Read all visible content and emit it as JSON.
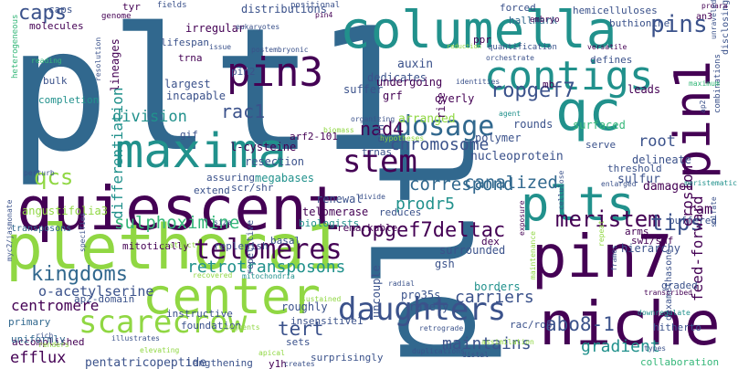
{
  "palette": {
    "background": "#ffffff",
    "dark_purple": "#440154",
    "indigo": "#3b528b",
    "blue": "#31688e",
    "teal": "#21918c",
    "green": "#35b779",
    "lime": "#90d743",
    "yellow": "#fde725"
  },
  "words": [
    "plt1",
    "plt",
    "quiescent",
    "plethora1",
    "columella",
    "qc",
    "maxima",
    "niche",
    "center",
    "pin7",
    "contigs",
    "pin1",
    "plts",
    "daughters",
    "pin3",
    "telomeres",
    "scarecrow",
    "stem",
    "dosage",
    "caps",
    "pins",
    "meristem",
    "tips",
    "ropgef7deltac",
    "kingdoms",
    "ropgef7",
    "nad4",
    "chromosome",
    "sulphoximine",
    "correspond",
    "prodr5",
    "retrotransposons",
    "tert",
    "abo8-1",
    "rac1",
    "qcs",
    "division",
    "differentiation",
    "canalized",
    "efflux",
    "carriers",
    "gradient",
    "maintains",
    "centromere",
    "feed-forward",
    "root",
    "erosion",
    "o-acetylserine",
    "pentatricopeptide",
    "ap2-domain",
    "mitotically",
    "replenish",
    "transposons",
    "angustifolia3",
    "l-cysteine",
    "resection",
    "megabases",
    "telomerase",
    "renewal",
    "nucleoprotein",
    "polymer",
    "rounds",
    "surfaced",
    "hemicelluloses",
    "buthionine",
    "lifespan",
    "irregular",
    "distributions",
    "largest",
    "incapable",
    "lineages",
    "molecules",
    "bulk",
    "completion",
    "forced",
    "hallmark",
    "dedicates",
    "auxin",
    "undergoing",
    "suffer",
    "overly",
    "grf",
    "arranged",
    "rise",
    "mb",
    "leads",
    "delineate",
    "serve",
    "sulfur",
    "damaged",
    "ram",
    "buffered",
    "hierarchy",
    "surrounded",
    "gsh",
    "dex",
    "borders",
    "pro35s",
    "rarely",
    "uncouple",
    "roughly",
    "sets",
    "insensitive1",
    "instructive",
    "foundation",
    "lengthening",
    "surprisingly",
    "accomplished",
    "uniformly",
    "primary",
    "biologists",
    "remarkable",
    "reduces",
    "threshold",
    "arms",
    "graded",
    "hitherto",
    "rac/rop",
    "swi/snf",
    "dexamethasone",
    "collaboration",
    "y1h",
    "basal",
    "scr/shr",
    "trnas",
    "arf2-101",
    "grn",
    "gif",
    "extend",
    "assuring",
    "pin2",
    "trna",
    "caps",
    "fields",
    "positional",
    "genome",
    "tyr",
    "eukaryotes",
    "postembryonic",
    "pin4",
    "embryo",
    "ppr",
    "quantification",
    "defines",
    "disclosing",
    "versatile",
    "an3",
    "pro",
    "ara",
    "orchestrate",
    "identities",
    "reduction",
    "reading",
    "resolution",
    "heterogeneous",
    "myc2/jasmonate",
    "perturb",
    "specifies",
    "distinct",
    "size",
    "enlarged",
    "sulfate",
    "meristematic",
    "combinations",
    "repetitive",
    "mitochondria",
    "recovered",
    "segments",
    "illustrates",
    "elevating",
    "rich",
    "renders",
    "retrograde",
    "duplications",
    "transcribed",
    "downregulate",
    "types",
    "distal",
    "assimilation",
    "apical",
    "creates",
    "radial",
    "sustained",
    "maintenance",
    "exposure",
    "cellulose",
    "frames",
    "repeat",
    "biomass",
    "hypotheses",
    "organizing",
    "divide",
    "agent",
    "issue",
    "unraveled",
    "maximum",
    "ap2"
  ]
}
